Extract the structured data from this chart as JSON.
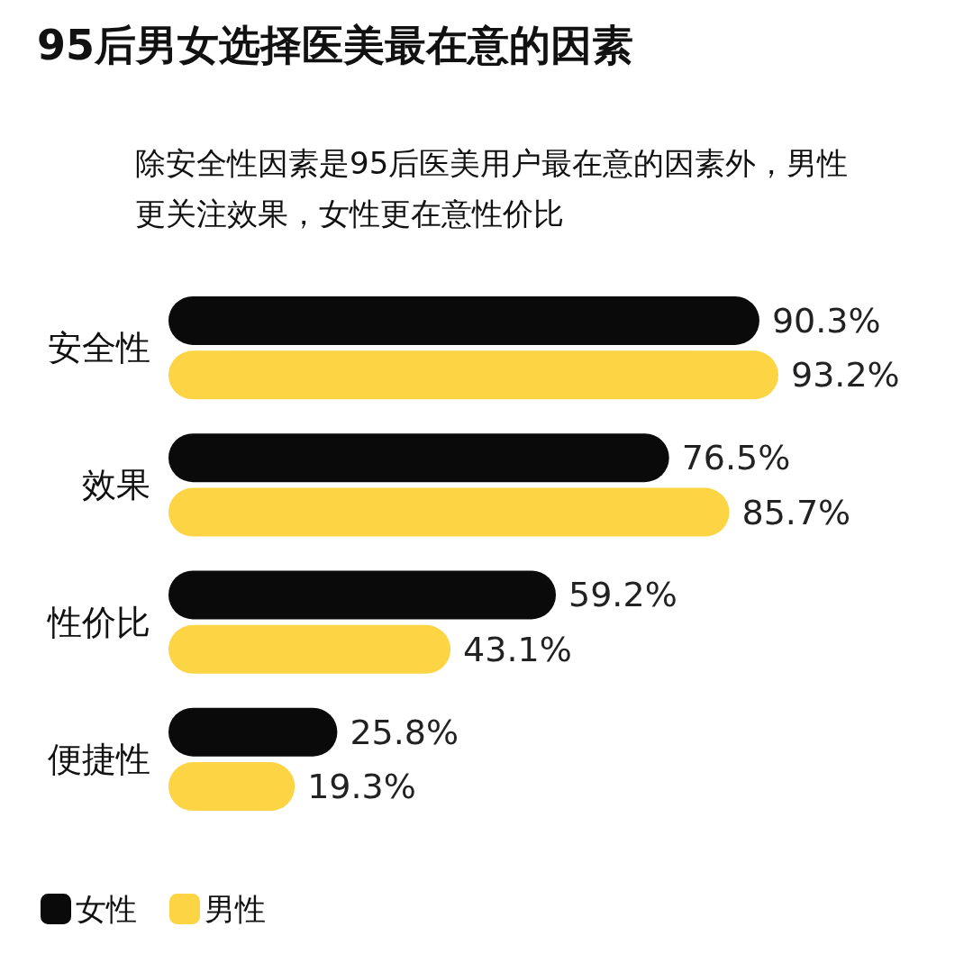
{
  "chart_data": {
    "type": "bar",
    "orientation": "horizontal",
    "title": "95后男女选择医美最在意的因素",
    "subtitle": "除安全性因素是95后医美用户最在意的因素外，男性更关注效果，女性更在意性价比",
    "categories": [
      "安全性",
      "效果",
      "性价比",
      "便捷性"
    ],
    "series": [
      {
        "name": "女性",
        "color": "#0a0a0a",
        "values": [
          90.3,
          76.5,
          59.2,
          25.8
        ],
        "value_labels": [
          "90.3%",
          "76.5%",
          "59.2%",
          "25.8%"
        ]
      },
      {
        "name": "男性",
        "color": "#fdd443",
        "values": [
          93.2,
          85.7,
          43.1,
          19.3
        ],
        "value_labels": [
          "93.2%",
          "85.7%",
          "43.1%",
          "19.3%"
        ]
      }
    ],
    "legend": "bottom left"
  }
}
